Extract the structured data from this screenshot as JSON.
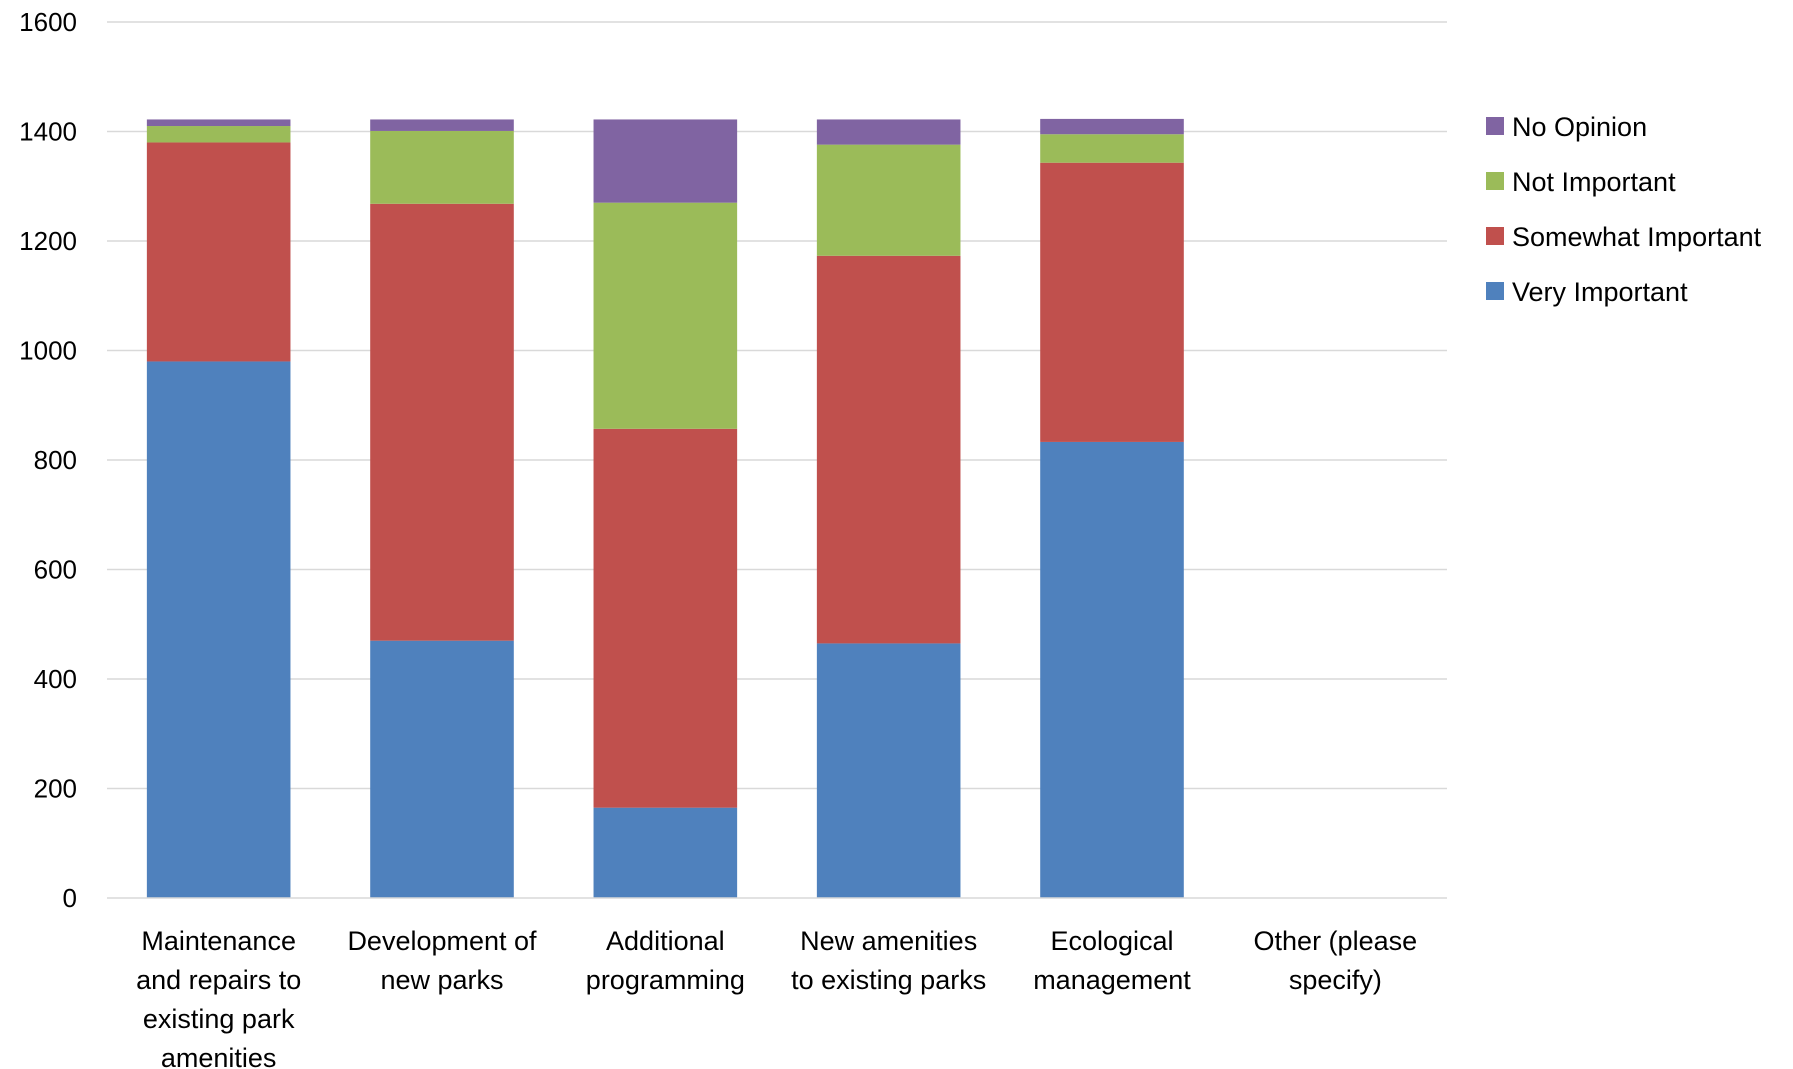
{
  "chart_data": {
    "type": "bar",
    "stacked": true,
    "categories": [
      [
        "Maintenance",
        "and repairs to",
        "existing park",
        "amenities"
      ],
      [
        "Development of",
        "new parks"
      ],
      [
        "Additional",
        "programming"
      ],
      [
        "New amenities",
        "to existing parks"
      ],
      [
        "Ecological",
        "management"
      ],
      [
        "Other (please",
        "specify)"
      ]
    ],
    "series": [
      {
        "name": "Very Important",
        "color": "#4F81BD",
        "values": [
          980,
          470,
          165,
          465,
          833,
          0
        ]
      },
      {
        "name": "Somewhat Important",
        "color": "#C0504D",
        "values": [
          400,
          798,
          692,
          708,
          510,
          0
        ]
      },
      {
        "name": "Not Important",
        "color": "#9BBB59",
        "values": [
          30,
          133,
          413,
          203,
          52,
          0
        ]
      },
      {
        "name": "No Opinion",
        "color": "#8064A2",
        "values": [
          12,
          21,
          152,
          46,
          28,
          0
        ]
      }
    ],
    "legend_order": [
      "No Opinion",
      "Not Important",
      "Somewhat Important",
      "Very Important"
    ],
    "ylim": [
      0,
      1600
    ],
    "yticks": [
      "0",
      "200",
      "400",
      "600",
      "800",
      "1000",
      "1200",
      "1400",
      "1600"
    ],
    "grid": true,
    "legend_position": "right",
    "title": "",
    "xlabel": "",
    "ylabel": ""
  }
}
